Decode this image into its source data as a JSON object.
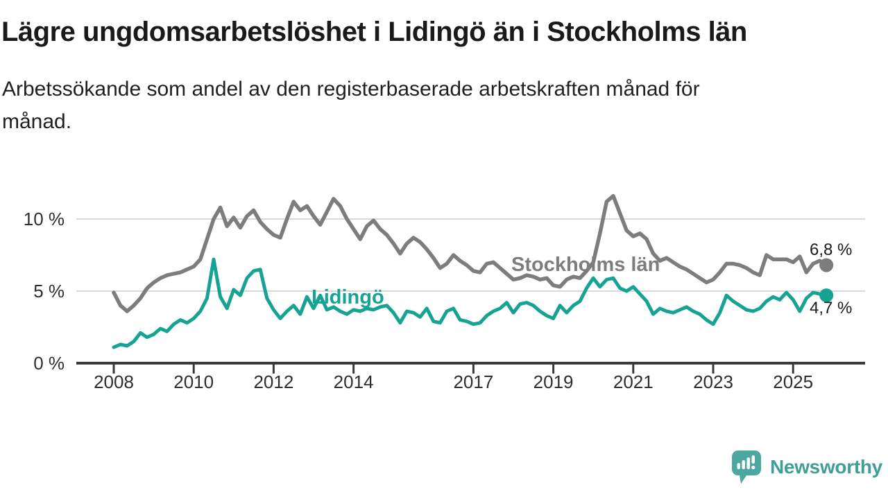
{
  "header": {
    "title": "Lägre ungdomsarbetslöshet i Lidingö än i Stockholms län",
    "subtitle": "Arbetssökande som andel av den registerbaserade arbetskraften månad för\nmånad."
  },
  "colors": {
    "stockholm_gray": "#7d7d7d",
    "lidingo_teal": "#17a394",
    "gridline": "#d9d9d9",
    "axis": "#3a3a3a",
    "tick_text": "#2e2e2e",
    "value_text": "#1b1b1b",
    "logo_teal": "#4ba7a0"
  },
  "chart_data": {
    "type": "line",
    "unit": "%",
    "grid": "horizontal",
    "legend": "inline series labels + end-value dots",
    "x_start": 2008,
    "x_step_years": 0.16667,
    "xlim": [
      2007.06,
      2026.8
    ],
    "ylim": [
      0,
      12.5
    ],
    "x_ticks": [
      {
        "year": 2008,
        "label": "2008"
      },
      {
        "year": 2010,
        "label": "2010"
      },
      {
        "year": 2012,
        "label": "2012"
      },
      {
        "year": 2014,
        "label": "2014"
      },
      {
        "year": 2017,
        "label": "2017"
      },
      {
        "year": 2019,
        "label": "2019"
      },
      {
        "year": 2021,
        "label": "2021"
      },
      {
        "year": 2023,
        "label": "2023"
      },
      {
        "year": 2025,
        "label": "2025"
      }
    ],
    "y_ticks": [
      {
        "value": 0,
        "label": "0 %"
      },
      {
        "value": 5,
        "label": "5 %"
      },
      {
        "value": 10,
        "label": "10 %"
      }
    ],
    "series": [
      {
        "name": "Stockholms län",
        "color": "#7d7d7d",
        "end_label": "6,8 %",
        "end_value": 6.8,
        "values": [
          4.9,
          4.0,
          3.6,
          4.0,
          4.5,
          5.2,
          5.6,
          5.9,
          6.1,
          6.2,
          6.3,
          6.5,
          6.7,
          7.2,
          8.6,
          10.0,
          10.8,
          9.5,
          10.1,
          9.4,
          10.2,
          10.6,
          9.8,
          9.3,
          8.9,
          8.7,
          10.0,
          11.2,
          10.6,
          10.9,
          10.2,
          9.6,
          10.5,
          11.4,
          10.9,
          10.0,
          9.3,
          8.6,
          9.5,
          9.9,
          9.3,
          8.9,
          8.3,
          7.6,
          8.3,
          8.7,
          8.4,
          7.9,
          7.3,
          6.6,
          6.9,
          7.5,
          7.1,
          6.8,
          6.4,
          6.3,
          6.9,
          7.0,
          6.6,
          6.2,
          5.8,
          5.9,
          6.1,
          6.0,
          5.8,
          5.9,
          5.4,
          5.3,
          5.8,
          6.0,
          5.9,
          6.4,
          7.0,
          9.0,
          11.2,
          11.6,
          10.4,
          9.2,
          8.8,
          9.0,
          8.6,
          7.6,
          7.1,
          7.3,
          7.0,
          6.7,
          6.5,
          6.2,
          5.9,
          5.6,
          5.8,
          6.3,
          6.9,
          6.9,
          6.8,
          6.6,
          6.3,
          6.1,
          7.5,
          7.2,
          7.2,
          7.2,
          7.0,
          7.4,
          6.3,
          6.9,
          7.1,
          6.8
        ]
      },
      {
        "name": "Lidingö",
        "color": "#17a394",
        "end_label": "4,7 %",
        "end_value": 4.7,
        "values": [
          1.1,
          1.3,
          1.2,
          1.5,
          2.1,
          1.8,
          2.0,
          2.4,
          2.2,
          2.7,
          3.0,
          2.8,
          3.1,
          3.6,
          4.5,
          7.2,
          4.6,
          3.8,
          5.1,
          4.7,
          5.9,
          6.4,
          6.5,
          4.5,
          3.7,
          3.1,
          3.6,
          4.0,
          3.4,
          4.6,
          3.8,
          4.7,
          3.7,
          3.9,
          3.6,
          3.4,
          3.7,
          3.6,
          3.8,
          3.7,
          3.9,
          4.0,
          3.5,
          2.8,
          3.6,
          3.5,
          3.2,
          3.8,
          2.9,
          2.8,
          3.6,
          3.8,
          3.0,
          2.9,
          2.7,
          2.8,
          3.3,
          3.6,
          3.8,
          4.2,
          3.5,
          4.1,
          4.2,
          4.0,
          3.6,
          3.3,
          3.1,
          4.0,
          3.5,
          4.0,
          4.3,
          5.2,
          5.9,
          5.3,
          5.8,
          5.9,
          5.2,
          5.0,
          5.3,
          4.8,
          4.3,
          3.4,
          3.8,
          3.6,
          3.5,
          3.7,
          3.9,
          3.6,
          3.4,
          3.0,
          2.7,
          3.5,
          4.7,
          4.3,
          4.0,
          3.7,
          3.6,
          3.8,
          4.3,
          4.6,
          4.4,
          4.9,
          4.4,
          3.6,
          4.5,
          4.9,
          4.8,
          4.7
        ]
      }
    ]
  },
  "footer": {
    "brand": "Newsworthy"
  }
}
